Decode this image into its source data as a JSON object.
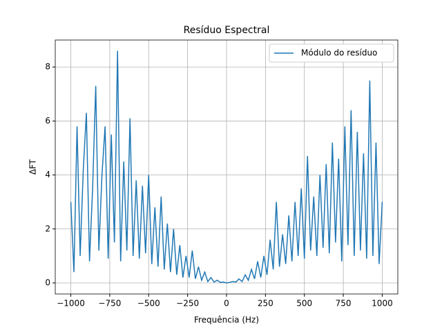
{
  "chart_data": {
    "type": "line",
    "title": "Resíduo Espectral",
    "xlabel": "Frequência (Hz)",
    "ylabel": "ΔFT",
    "x": [
      -1000,
      -980,
      -960,
      -940,
      -920,
      -900,
      -880,
      -860,
      -840,
      -820,
      -800,
      -780,
      -760,
      -740,
      -720,
      -700,
      -680,
      -660,
      -640,
      -620,
      -600,
      -580,
      -560,
      -540,
      -520,
      -500,
      -480,
      -460,
      -440,
      -420,
      -400,
      -380,
      -360,
      -340,
      -320,
      -300,
      -280,
      -260,
      -240,
      -220,
      -200,
      -180,
      -160,
      -140,
      -120,
      -100,
      -80,
      -60,
      -40,
      -20,
      0,
      20,
      40,
      60,
      80,
      100,
      120,
      140,
      160,
      180,
      200,
      220,
      240,
      260,
      280,
      300,
      320,
      340,
      360,
      380,
      400,
      420,
      440,
      460,
      480,
      500,
      520,
      540,
      560,
      580,
      600,
      620,
      640,
      660,
      680,
      700,
      720,
      740,
      760,
      780,
      800,
      820,
      840,
      860,
      880,
      900,
      920,
      940,
      960,
      980,
      1000
    ],
    "series": [
      {
        "name": "Módulo do resíduo",
        "color": "#1f77b4",
        "values": [
          3.0,
          0.4,
          5.8,
          1.0,
          4.2,
          6.3,
          0.8,
          3.5,
          7.3,
          1.2,
          4.0,
          5.8,
          0.9,
          5.5,
          1.5,
          8.6,
          0.8,
          4.5,
          1.2,
          6.1,
          1.0,
          3.8,
          0.9,
          3.6,
          1.1,
          4.0,
          0.7,
          2.8,
          0.6,
          3.2,
          0.5,
          2.2,
          0.4,
          2.0,
          0.3,
          1.4,
          0.2,
          1.0,
          0.2,
          1.2,
          0.15,
          0.6,
          0.1,
          0.4,
          0.05,
          0.2,
          0.03,
          0.1,
          0.02,
          0.03,
          0.0,
          0.02,
          0.05,
          0.03,
          0.15,
          0.05,
          0.3,
          0.1,
          0.5,
          0.15,
          0.8,
          0.2,
          1.0,
          0.3,
          1.6,
          0.5,
          3.0,
          0.6,
          1.8,
          0.7,
          2.5,
          0.8,
          3.0,
          1.0,
          3.5,
          0.9,
          4.7,
          1.2,
          3.2,
          1.0,
          4.0,
          1.3,
          4.4,
          1.1,
          5.2,
          1.5,
          4.6,
          0.8,
          5.8,
          1.4,
          6.4,
          1.0,
          5.6,
          1.2,
          4.8,
          0.9,
          7.5,
          1.0,
          5.2,
          0.7,
          3.0
        ]
      }
    ],
    "xlim": [
      -1100,
      1100
    ],
    "ylim": [
      -0.41,
      9.0
    ],
    "xticks": [
      {
        "value": -1000,
        "label": "−1000"
      },
      {
        "value": -750,
        "label": "−750"
      },
      {
        "value": -500,
        "label": "−500"
      },
      {
        "value": -250,
        "label": "−250"
      },
      0,
      250,
      500,
      750,
      1000
    ],
    "yticks": [
      0,
      2,
      4,
      6,
      8
    ],
    "grid": true,
    "legend": "upper right"
  }
}
